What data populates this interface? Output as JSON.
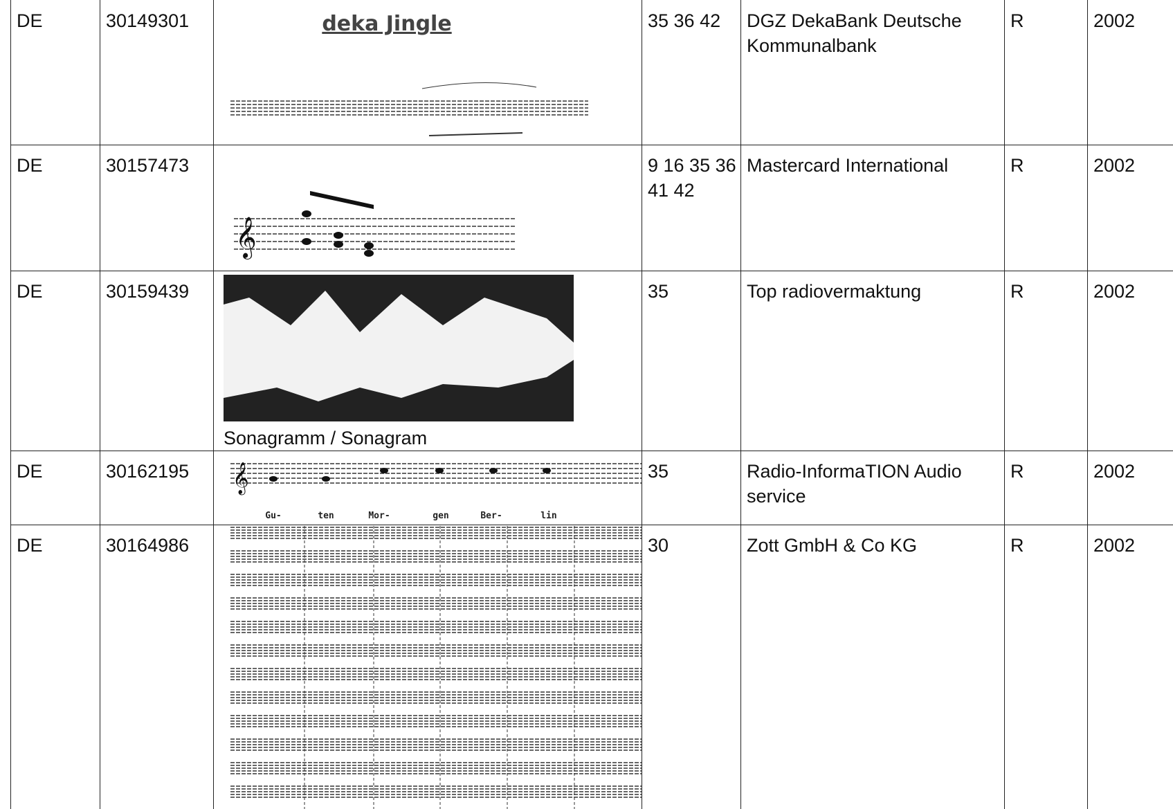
{
  "table": {
    "rows": [
      {
        "country": "DE",
        "number": "30149301",
        "image_title": "deka Jingle",
        "classes": "35 36 42",
        "owner": "DGZ DekaBank Deutsche Kommunalbank",
        "kind": "R",
        "year": "2002"
      },
      {
        "country": "DE",
        "number": "30157473",
        "classes": "9 16 35 36 41 42",
        "owner": "Mastercard International",
        "kind": "R",
        "year": "2002"
      },
      {
        "country": "DE",
        "number": "30159439",
        "image_caption": "Sonagramm / Sonagram",
        "classes": "35",
        "owner": "Top radiovermaktung",
        "kind": "R",
        "year": "2002"
      },
      {
        "country": "DE",
        "number": "30162195",
        "lyrics": [
          "Gu-",
          "ten",
          "Mor-",
          "gen",
          "Ber-",
          "lin"
        ],
        "classes": "35",
        "owner": "Radio-InformaTION Audio service",
        "kind": "R",
        "year": "2002"
      },
      {
        "country": "DE",
        "number": "30164986",
        "classes": "30",
        "owner": "Zott GmbH & Co KG",
        "kind": "R",
        "year": "2002"
      }
    ]
  }
}
